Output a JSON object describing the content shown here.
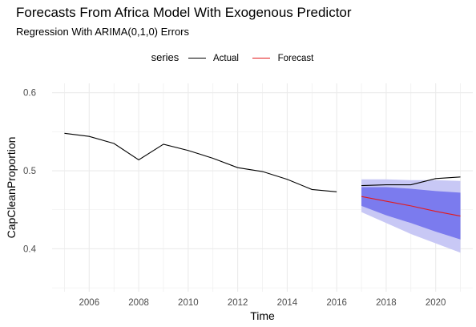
{
  "chart_data": {
    "type": "line",
    "title": "Forecasts From Africa Model With Exogenous Predictor",
    "subtitle": "Regression With ARIMA(0,1,0) Errors",
    "xlabel": "Time",
    "ylabel": "CapCleanProportion",
    "xlim": [
      2004.5,
      2021.5
    ],
    "ylim": [
      0.345,
      0.612
    ],
    "x_ticks": [
      2006,
      2008,
      2010,
      2012,
      2014,
      2016,
      2018,
      2020
    ],
    "y_ticks": [
      0.4,
      0.5,
      0.6
    ],
    "grid": true,
    "legend": {
      "title": "series",
      "position": "top",
      "entries": [
        {
          "label": "Actual",
          "color": "#000000"
        },
        {
          "label": "Forecast",
          "color": "#e41a1c"
        }
      ]
    },
    "series": [
      {
        "name": "Actual",
        "color": "#000000",
        "x": [
          2005,
          2006,
          2007,
          2008,
          2009,
          2010,
          2011,
          2012,
          2013,
          2014,
          2015,
          2016
        ],
        "values": [
          0.548,
          0.544,
          0.535,
          0.514,
          0.534,
          0.526,
          0.516,
          0.504,
          0.499,
          0.489,
          0.476,
          0.473
        ]
      },
      {
        "name": "Actual",
        "color": "#000000",
        "x": [
          2017,
          2018,
          2019,
          2020,
          2021
        ],
        "values": [
          0.481,
          0.482,
          0.482,
          0.49,
          0.492
        ]
      },
      {
        "name": "Forecast",
        "color": "#e41a1c",
        "x": [
          2017,
          2018,
          2019,
          2020,
          2021
        ],
        "values": [
          0.467,
          0.461,
          0.455,
          0.448,
          0.442
        ],
        "pi80": {
          "lower": [
            0.455,
            0.443,
            0.433,
            0.422,
            0.412
          ],
          "upper": [
            0.479,
            0.479,
            0.477,
            0.474,
            0.472
          ]
        },
        "pi95": {
          "lower": [
            0.447,
            0.433,
            0.419,
            0.407,
            0.395
          ],
          "upper": [
            0.489,
            0.489,
            0.488,
            0.488,
            0.487
          ]
        }
      }
    ],
    "colors": {
      "pi95": "#c8c8f5",
      "pi80": "#7b7bee",
      "grid": "#ebebeb"
    }
  }
}
